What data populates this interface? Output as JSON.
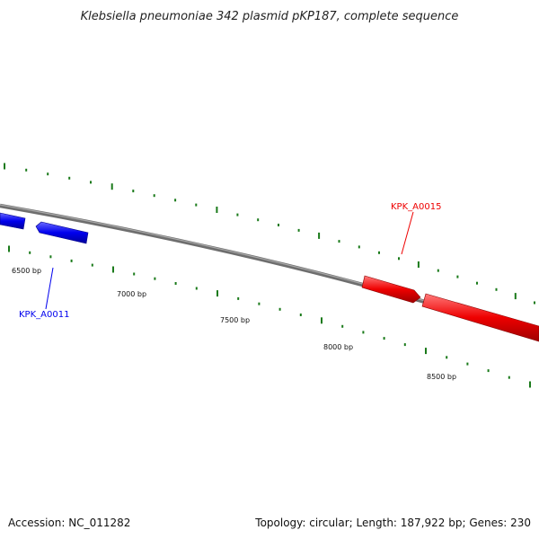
{
  "title": "Klebsiella pneumoniae 342 plasmid pKP187, complete sequence",
  "accession": "Accession: NC_011282",
  "summary": "Topology: circular; Length: 187,922 bp; Genes: 230",
  "position_labels": [
    "6500 bp",
    "7000 bp",
    "7500 bp",
    "8000 bp",
    "8500 bp"
  ],
  "genes": [
    {
      "name": "KPK_A0011",
      "strand": "minus",
      "color": "#0000ee"
    },
    {
      "name": "KPK_A0015",
      "strand": "plus",
      "color": "#ee0000"
    }
  ],
  "colors": {
    "backbone": "#808080",
    "ticks": "#1a7a1a",
    "minus_strand": "#0000ee",
    "plus_strand": "#ee0000"
  }
}
